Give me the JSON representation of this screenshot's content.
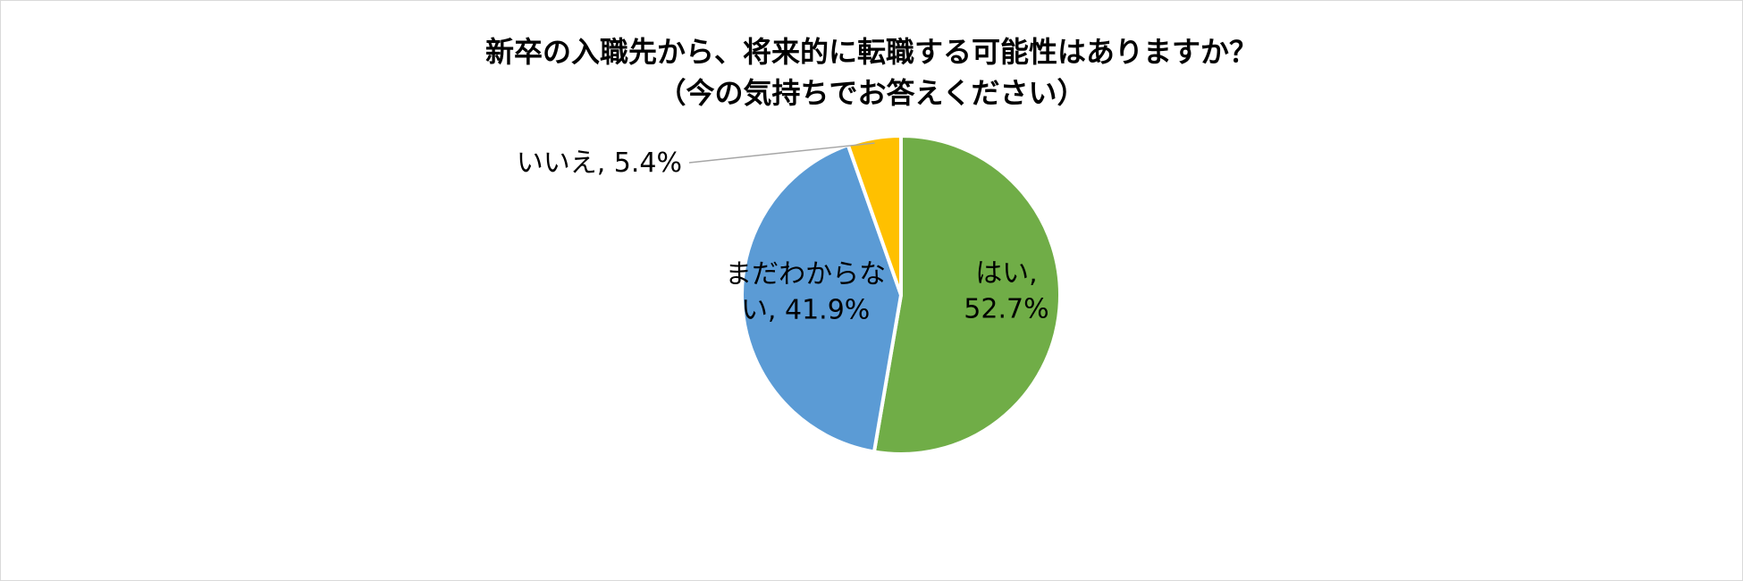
{
  "chart_data": {
    "type": "pie",
    "title_lines": [
      "新卒の入職先から、将来的に転職する可能性はありますか？",
      "（今の気持ちでお答えください）"
    ],
    "slices": [
      {
        "label": "はい",
        "value": 52.7,
        "color": "#70AD47",
        "label_lines": [
          "はい,",
          "52.7%"
        ],
        "label_placement": "inside-right"
      },
      {
        "label": "まだわからない",
        "value": 41.9,
        "color": "#5B9BD5",
        "label_lines": [
          "まだわからな",
          "い, 41.9%"
        ],
        "label_placement": "inside-left"
      },
      {
        "label": "いいえ",
        "value": 5.4,
        "color": "#FFC000",
        "label_lines": [
          "いいえ, 5.4%"
        ],
        "label_placement": "outside-top-left"
      }
    ],
    "start_angle_degrees": 0,
    "direction": "clockwise",
    "slice_border_color": "#FFFFFF",
    "leader_line_color": "#A6A6A6",
    "legend": "none"
  }
}
